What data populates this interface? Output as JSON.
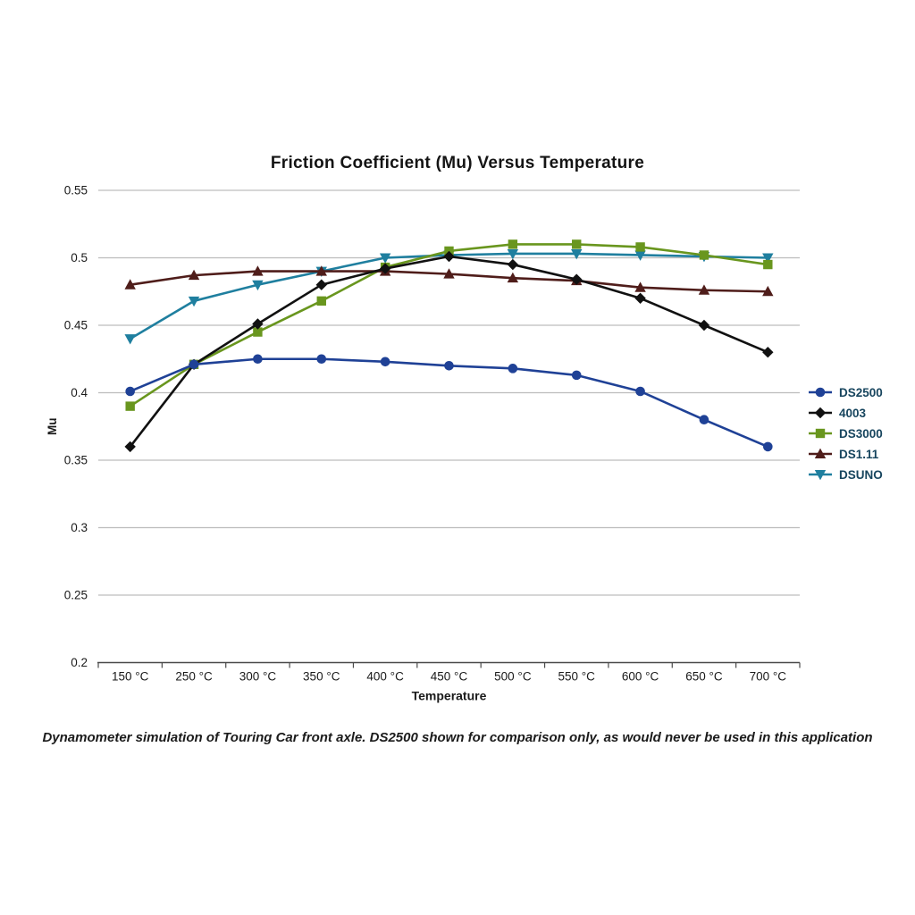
{
  "chart_data": {
    "type": "line",
    "title": "Friction Coefficient (Mu) Versus Temperature",
    "xlabel": "Temperature",
    "ylabel": "Mu",
    "categories": [
      "150 °C",
      "250 °C",
      "300 °C",
      "350 °C",
      "400 °C",
      "450 °C",
      "500 °C",
      "550 °C",
      "600 °C",
      "650 °C",
      "700 °C"
    ],
    "ylim": [
      0.2,
      0.55
    ],
    "ytick_step": 0.05,
    "grid": "horizontal",
    "legend_position": "right",
    "series": [
      {
        "name": "DS2500",
        "color": "#1F4196",
        "marker": "circle",
        "values": [
          0.401,
          0.421,
          0.425,
          0.425,
          0.423,
          0.42,
          0.418,
          0.413,
          0.401,
          0.38,
          0.36
        ]
      },
      {
        "name": "4003",
        "color": "#111111",
        "marker": "diamond",
        "values": [
          0.36,
          0.421,
          0.451,
          0.48,
          0.492,
          0.501,
          0.495,
          0.484,
          0.47,
          0.45,
          0.43
        ]
      },
      {
        "name": "DS3000",
        "color": "#69961E",
        "marker": "square",
        "values": [
          0.39,
          0.421,
          0.445,
          0.468,
          0.493,
          0.505,
          0.51,
          0.51,
          0.508,
          0.502,
          0.495
        ]
      },
      {
        "name": "DS1.11",
        "color": "#4F1D1A",
        "marker": "triangle-up",
        "values": [
          0.48,
          0.487,
          0.49,
          0.49,
          0.49,
          0.488,
          0.485,
          0.483,
          0.478,
          0.476,
          0.475
        ]
      },
      {
        "name": "DSUNO",
        "color": "#1F7F9F",
        "marker": "triangle-down",
        "values": [
          0.44,
          0.468,
          0.48,
          0.49,
          0.5,
          0.502,
          0.503,
          0.503,
          0.502,
          0.501,
          0.5
        ]
      }
    ],
    "colors": {
      "gridline": "#bdbdbd",
      "axis_line": "#4a4a4a",
      "tick_label": "#1a1a1a",
      "legend_text": "#17455E"
    }
  },
  "footer": {
    "note": "Dynamometer simulation of Touring Car front axle. DS2500 shown for comparison only, as would never be used in this application"
  }
}
